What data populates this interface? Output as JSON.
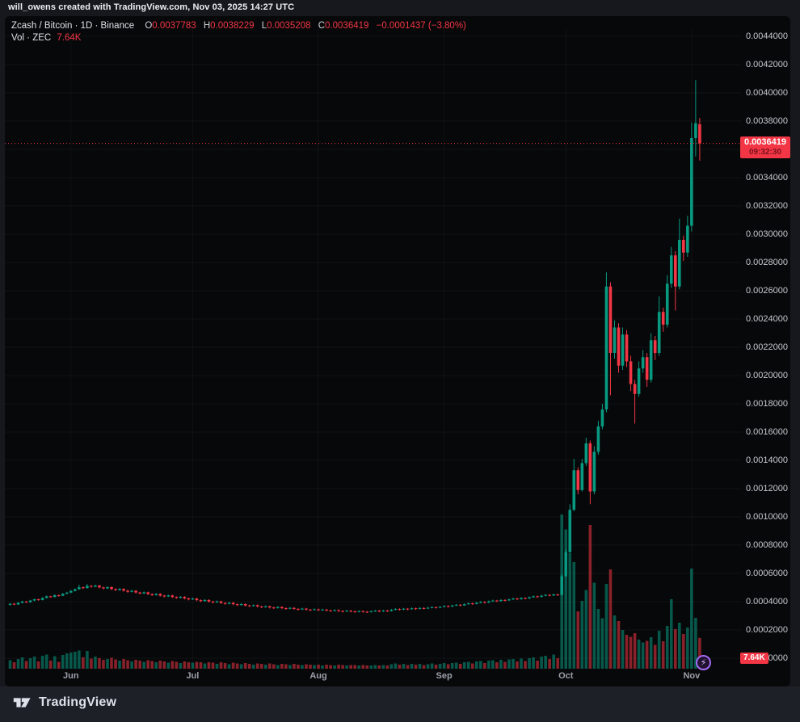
{
  "page": {
    "topbar_text": "will_owens created with TradingView.com, Nov 03, 2025 14:27 UTC",
    "footer_brand": "TradingView"
  },
  "legend": {
    "title": "Zcash / Bitcoin · 1D · Binance",
    "o_label": "O",
    "o_value": "0.0037783",
    "h_label": "H",
    "h_value": "0.0038229",
    "l_label": "L",
    "l_value": "0.0035208",
    "c_label": "C",
    "c_value": "0.0036419",
    "change": "−0.0001437 (−3.80%)",
    "vol_label": "Vol · ZEC",
    "vol_value": "7.64K"
  },
  "price_axis": {
    "ticks": [
      "0.0044000",
      "0.0042000",
      "0.0040000",
      "0.0038000",
      "0.0036000",
      "0.0034000",
      "0.0032000",
      "0.0030000",
      "0.0028000",
      "0.0026000",
      "0.0024000",
      "0.0022000",
      "0.0020000",
      "0.0018000",
      "0.0016000",
      "0.0014000",
      "0.0012000",
      "0.0010000",
      "0.0008000",
      "0.0006000",
      "0.0004000",
      "0.0002000",
      "0.0000000"
    ],
    "last_price_label": "0.0036419",
    "countdown": "09:32:30",
    "volume_label": "7.64K"
  },
  "time_axis": {
    "labels": [
      {
        "label": "Jun",
        "day_index": 15
      },
      {
        "label": "Jul",
        "day_index": 45
      },
      {
        "label": "Aug",
        "day_index": 76
      },
      {
        "label": "Sep",
        "day_index": 107
      },
      {
        "label": "Oct",
        "day_index": 137
      },
      {
        "label": "Nov",
        "day_index": 168
      }
    ]
  },
  "colors": {
    "up": "#089981",
    "down": "#f23645",
    "accent_red": "#f23645",
    "accent_purple": "#a36bf5",
    "axis_text": "#c6c9d0"
  },
  "chart_data": {
    "type": "candlestick+volume",
    "title": "Zcash / Bitcoin",
    "timeframe": "1D",
    "exchange": "Binance",
    "start_date": "2025-05-17",
    "end_date": "2025-11-03",
    "price_unit": 1e-07,
    "volume_unit_label": "K ZEC",
    "y_axis": {
      "min": 0,
      "max": 44000,
      "tick_step": 2000
    },
    "volume_axis_max": 41,
    "last_close": 36419,
    "candle_format": [
      "open",
      "high",
      "low",
      "close",
      "volume_K"
    ],
    "candles": [
      [
        3780,
        3900,
        3720,
        3850,
        2.1
      ],
      [
        3850,
        3910,
        3760,
        3800,
        1.6
      ],
      [
        3800,
        3970,
        3770,
        3920,
        2.4
      ],
      [
        3920,
        4060,
        3880,
        4010,
        2.8
      ],
      [
        4010,
        4050,
        3900,
        3960,
        1.9
      ],
      [
        3960,
        4130,
        3930,
        4080,
        2.6
      ],
      [
        4080,
        4220,
        4040,
        4170,
        3.0
      ],
      [
        4170,
        4210,
        4060,
        4120,
        1.8
      ],
      [
        4120,
        4310,
        4090,
        4260,
        3.2
      ],
      [
        4260,
        4430,
        4230,
        4380,
        3.5
      ],
      [
        4380,
        4420,
        4270,
        4330,
        2.0
      ],
      [
        4330,
        4510,
        4300,
        4460,
        3.1
      ],
      [
        4460,
        4500,
        4350,
        4420,
        1.7
      ],
      [
        4420,
        4610,
        4390,
        4560,
        3.4
      ],
      [
        4560,
        4700,
        4520,
        4640,
        3.8
      ],
      [
        4640,
        4820,
        4600,
        4760,
        4.0
      ],
      [
        4760,
        4940,
        4720,
        4880,
        4.2
      ],
      [
        4880,
        5200,
        4840,
        5020,
        4.5
      ],
      [
        5020,
        5070,
        4890,
        4960,
        2.8
      ],
      [
        4960,
        5250,
        4930,
        5120,
        4.4
      ],
      [
        5120,
        5170,
        4990,
        5060,
        2.5
      ],
      [
        5060,
        5200,
        5020,
        5140,
        3.0
      ],
      [
        5140,
        5190,
        4940,
        5010,
        2.6
      ],
      [
        5010,
        5060,
        4870,
        4940,
        2.2
      ],
      [
        4940,
        5090,
        4900,
        5030,
        2.4
      ],
      [
        5030,
        5080,
        4820,
        4890,
        2.7
      ],
      [
        4890,
        4940,
        4750,
        4820,
        2.3
      ],
      [
        4820,
        4960,
        4780,
        4900,
        2.0
      ],
      [
        4900,
        4950,
        4710,
        4780,
        2.4
      ],
      [
        4780,
        4830,
        4630,
        4700,
        2.1
      ],
      [
        4700,
        4830,
        4660,
        4770,
        1.8
      ],
      [
        4770,
        4820,
        4580,
        4650,
        2.2
      ],
      [
        4650,
        4700,
        4510,
        4580,
        2.0
      ],
      [
        4580,
        4720,
        4540,
        4660,
        1.7
      ],
      [
        4660,
        4710,
        4470,
        4540,
        2.1
      ],
      [
        4540,
        4590,
        4400,
        4470,
        1.9
      ],
      [
        4470,
        4610,
        4430,
        4550,
        1.6
      ],
      [
        4550,
        4600,
        4360,
        4430,
        2.0
      ],
      [
        4430,
        4480,
        4300,
        4370,
        1.8
      ],
      [
        4370,
        4500,
        4330,
        4440,
        1.5
      ],
      [
        4440,
        4490,
        4260,
        4330,
        1.9
      ],
      [
        4330,
        4380,
        4200,
        4270,
        1.7
      ],
      [
        4270,
        4400,
        4230,
        4340,
        1.4
      ],
      [
        4340,
        4390,
        4160,
        4230,
        1.8
      ],
      [
        4230,
        4280,
        4090,
        4160,
        1.6
      ],
      [
        4160,
        4280,
        4120,
        4220,
        1.5
      ],
      [
        4220,
        4270,
        4040,
        4110,
        1.7
      ],
      [
        4110,
        4160,
        3970,
        4040,
        1.6
      ],
      [
        4040,
        4180,
        4000,
        4120,
        1.3
      ],
      [
        4120,
        4170,
        3940,
        4010,
        1.6
      ],
      [
        4010,
        4060,
        3880,
        3950,
        1.5
      ],
      [
        3950,
        4080,
        3910,
        4020,
        1.2
      ],
      [
        4020,
        4070,
        3840,
        3910,
        1.6
      ],
      [
        3910,
        3960,
        3780,
        3850,
        1.4
      ],
      [
        3850,
        3980,
        3810,
        3920,
        1.1
      ],
      [
        3920,
        3970,
        3750,
        3820,
        1.5
      ],
      [
        3820,
        3870,
        3690,
        3760,
        1.3
      ],
      [
        3760,
        3890,
        3720,
        3830,
        1.1
      ],
      [
        3830,
        3880,
        3660,
        3730,
        1.4
      ],
      [
        3730,
        3780,
        3620,
        3690,
        1.2
      ],
      [
        3690,
        3810,
        3650,
        3750,
        1.0
      ],
      [
        3750,
        3800,
        3590,
        3660,
        1.3
      ],
      [
        3660,
        3710,
        3540,
        3610,
        1.2
      ],
      [
        3610,
        3730,
        3570,
        3670,
        1.0
      ],
      [
        3670,
        3720,
        3520,
        3590,
        1.3
      ],
      [
        3590,
        3640,
        3480,
        3550,
        1.1
      ],
      [
        3550,
        3680,
        3510,
        3620,
        0.9
      ],
      [
        3620,
        3670,
        3470,
        3540,
        1.2
      ],
      [
        3540,
        3590,
        3430,
        3500,
        1.1
      ],
      [
        3500,
        3620,
        3460,
        3560,
        0.9
      ],
      [
        3560,
        3610,
        3420,
        3490,
        1.2
      ],
      [
        3490,
        3540,
        3380,
        3450,
        1.0
      ],
      [
        3450,
        3570,
        3410,
        3510,
        0.9
      ],
      [
        3510,
        3560,
        3370,
        3440,
        1.1
      ],
      [
        3440,
        3490,
        3340,
        3410,
        1.0
      ],
      [
        3410,
        3520,
        3370,
        3460,
        0.9
      ],
      [
        3460,
        3510,
        3330,
        3400,
        1.0
      ],
      [
        3400,
        3500,
        3360,
        3440,
        0.8
      ],
      [
        3440,
        3490,
        3310,
        3380,
        1.0
      ],
      [
        3380,
        3430,
        3280,
        3350,
        0.9
      ],
      [
        3350,
        3460,
        3310,
        3400,
        0.8
      ],
      [
        3400,
        3450,
        3270,
        3340,
        1.0
      ],
      [
        3340,
        3390,
        3240,
        3310,
        0.9
      ],
      [
        3310,
        3420,
        3270,
        3360,
        0.8
      ],
      [
        3360,
        3410,
        3240,
        3310,
        0.9
      ],
      [
        3310,
        3360,
        3210,
        3280,
        0.9
      ],
      [
        3280,
        3390,
        3240,
        3330,
        0.8
      ],
      [
        3330,
        3380,
        3220,
        3290,
        0.9
      ],
      [
        3290,
        3340,
        3200,
        3270,
        0.8
      ],
      [
        3270,
        3380,
        3230,
        3320,
        0.8
      ],
      [
        3320,
        3420,
        3280,
        3360,
        0.9
      ],
      [
        3360,
        3410,
        3250,
        3320,
        0.8
      ],
      [
        3320,
        3430,
        3280,
        3370,
        0.9
      ],
      [
        3370,
        3420,
        3270,
        3340,
        0.8
      ],
      [
        3340,
        3480,
        3300,
        3420,
        1.1
      ],
      [
        3420,
        3540,
        3380,
        3480,
        1.3
      ],
      [
        3480,
        3530,
        3370,
        3440,
        1.0
      ],
      [
        3440,
        3560,
        3400,
        3500,
        1.2
      ],
      [
        3500,
        3550,
        3400,
        3470,
        0.9
      ],
      [
        3470,
        3590,
        3430,
        3530,
        1.2
      ],
      [
        3530,
        3580,
        3420,
        3490,
        1.0
      ],
      [
        3490,
        3610,
        3450,
        3550,
        1.2
      ],
      [
        3550,
        3600,
        3450,
        3520,
        0.9
      ],
      [
        3520,
        3630,
        3480,
        3570,
        1.1
      ],
      [
        3570,
        3670,
        3530,
        3610,
        1.3
      ],
      [
        3610,
        3660,
        3510,
        3580,
        1.0
      ],
      [
        3580,
        3690,
        3540,
        3630,
        1.2
      ],
      [
        3630,
        3750,
        3590,
        3690,
        1.4
      ],
      [
        3690,
        3740,
        3590,
        3660,
        1.1
      ],
      [
        3660,
        3790,
        3620,
        3730,
        1.4
      ],
      [
        3730,
        3840,
        3690,
        3780,
        1.5
      ],
      [
        3780,
        3830,
        3670,
        3740,
        1.2
      ],
      [
        3740,
        3880,
        3700,
        3820,
        1.6
      ],
      [
        3820,
        3940,
        3780,
        3880,
        1.7
      ],
      [
        3880,
        3930,
        3770,
        3840,
        1.3
      ],
      [
        3840,
        3980,
        3800,
        3920,
        1.8
      ],
      [
        3920,
        4040,
        3880,
        3980,
        1.9
      ],
      [
        3980,
        4030,
        3870,
        3940,
        1.4
      ],
      [
        3940,
        4080,
        3900,
        4020,
        2.0
      ],
      [
        4020,
        4140,
        3980,
        4080,
        2.1
      ],
      [
        4080,
        4130,
        3970,
        4040,
        1.6
      ],
      [
        4040,
        4180,
        4000,
        4120,
        2.2
      ],
      [
        4120,
        4170,
        4020,
        4090,
        1.7
      ],
      [
        4090,
        4220,
        4050,
        4160,
        2.3
      ],
      [
        4160,
        4280,
        4120,
        4220,
        2.4
      ],
      [
        4220,
        4270,
        4110,
        4180,
        1.8
      ],
      [
        4180,
        4320,
        4140,
        4260,
        2.5
      ],
      [
        4260,
        4310,
        4160,
        4230,
        1.9
      ],
      [
        4230,
        4370,
        4190,
        4310,
        2.6
      ],
      [
        4310,
        4440,
        4270,
        4380,
        2.8
      ],
      [
        4380,
        4430,
        4270,
        4340,
        2.0
      ],
      [
        4340,
        4480,
        4300,
        4420,
        3.0
      ],
      [
        4420,
        4540,
        4380,
        4480,
        3.2
      ],
      [
        4480,
        4530,
        4370,
        4440,
        2.4
      ],
      [
        4440,
        4570,
        4400,
        4510,
        3.5
      ],
      [
        4510,
        4560,
        4410,
        4480,
        2.6
      ],
      [
        4480,
        5950,
        4450,
        5800,
        38.2
      ],
      [
        5800,
        7700,
        5750,
        7500,
        34.5
      ],
      [
        7500,
        10900,
        7450,
        10500,
        28.6
      ],
      [
        10500,
        14100,
        10400,
        13300,
        26.4
      ],
      [
        13300,
        13500,
        11600,
        11900,
        14.2
      ],
      [
        11900,
        14100,
        11800,
        13800,
        16.8
      ],
      [
        13800,
        15600,
        13600,
        15200,
        19.5
      ],
      [
        15200,
        15400,
        10900,
        11800,
        35.6
      ],
      [
        11800,
        15000,
        11600,
        14600,
        21.3
      ],
      [
        14600,
        16800,
        14400,
        16400,
        14.8
      ],
      [
        16400,
        18000,
        16200,
        17600,
        12.5
      ],
      [
        17600,
        27300,
        17400,
        26300,
        21.0
      ],
      [
        26300,
        26600,
        18600,
        21600,
        24.6
      ],
      [
        21600,
        23900,
        21200,
        23400,
        13.2
      ],
      [
        23400,
        23700,
        20200,
        20700,
        11.8
      ],
      [
        20700,
        23400,
        20400,
        22900,
        9.6
      ],
      [
        22900,
        23200,
        20600,
        21000,
        8.4
      ],
      [
        21000,
        21400,
        18900,
        19400,
        7.9
      ],
      [
        19400,
        19700,
        16600,
        18700,
        8.8
      ],
      [
        18700,
        21000,
        18500,
        20500,
        7.2
      ],
      [
        20500,
        21800,
        20200,
        21300,
        6.5
      ],
      [
        21300,
        21600,
        19200,
        19700,
        6.9
      ],
      [
        19700,
        23000,
        19500,
        22500,
        7.8
      ],
      [
        22500,
        22800,
        21100,
        21600,
        5.9
      ],
      [
        21600,
        25600,
        21400,
        24500,
        9.4
      ],
      [
        24500,
        24800,
        23100,
        23600,
        6.8
      ],
      [
        23600,
        27100,
        23400,
        26500,
        10.6
      ],
      [
        26500,
        29100,
        26200,
        28500,
        17.2
      ],
      [
        28500,
        28800,
        24600,
        26300,
        9.8
      ],
      [
        26300,
        31100,
        26100,
        29600,
        11.4
      ],
      [
        29600,
        29900,
        28100,
        28700,
        8.6
      ],
      [
        28700,
        31300,
        28400,
        30600,
        10.2
      ],
      [
        30600,
        37900,
        30200,
        36800,
        24.8
      ],
      [
        36800,
        40900,
        35500,
        37856,
        12.6
      ],
      [
        37783,
        38229,
        35208,
        36419,
        7.64
      ]
    ]
  }
}
